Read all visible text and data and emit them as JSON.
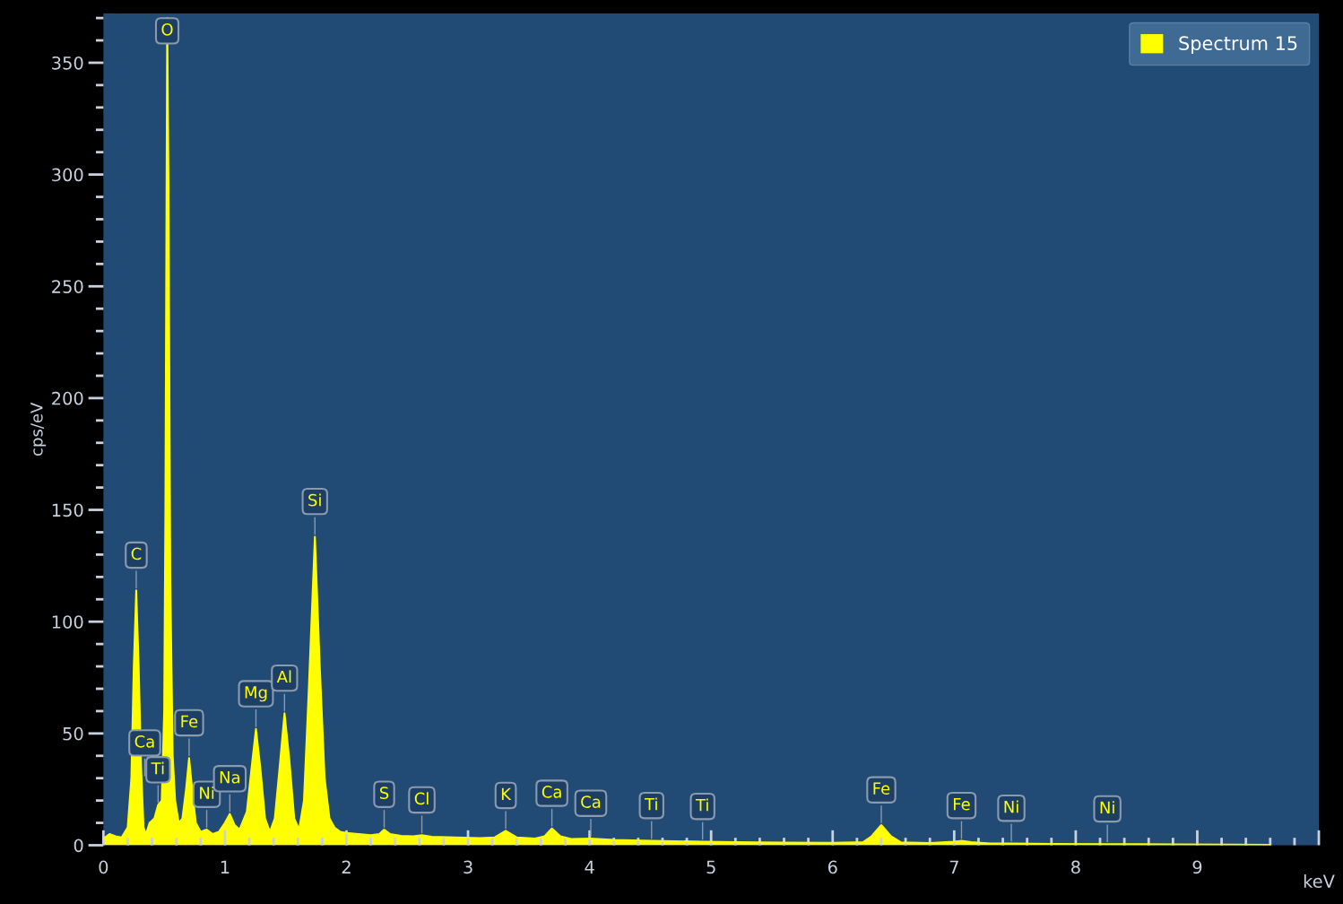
{
  "chart_data": {
    "type": "area",
    "xlabel": "keV",
    "ylabel": "cps/eV",
    "xlim": [
      0,
      10
    ],
    "xticks": [
      0,
      1,
      2,
      3,
      4,
      5,
      6,
      7,
      8,
      9,
      {
        "value": 10,
        "label": null
      }
    ],
    "ylim": [
      0,
      372
    ],
    "yticks": [
      0,
      50,
      100,
      150,
      200,
      250,
      300,
      350
    ],
    "grid": false,
    "legend": "top right",
    "series": [
      {
        "name": "Spectrum 15",
        "color": "#ffff00",
        "x": [
          0.0,
          0.05,
          0.1,
          0.15,
          0.2,
          0.23,
          0.25,
          0.27,
          0.29,
          0.31,
          0.33,
          0.35,
          0.38,
          0.42,
          0.45,
          0.48,
          0.5,
          0.51,
          0.52,
          0.525,
          0.535,
          0.55,
          0.57,
          0.59,
          0.62,
          0.65,
          0.68,
          0.705,
          0.73,
          0.76,
          0.8,
          0.85,
          0.9,
          0.95,
          1.0,
          1.04,
          1.08,
          1.12,
          1.18,
          1.22,
          1.255,
          1.29,
          1.33,
          1.37,
          1.41,
          1.45,
          1.49,
          1.53,
          1.57,
          1.61,
          1.65,
          1.69,
          1.74,
          1.78,
          1.82,
          1.86,
          1.9,
          1.95,
          2.0,
          2.1,
          2.2,
          2.27,
          2.31,
          2.36,
          2.45,
          2.55,
          2.62,
          2.7,
          2.9,
          3.1,
          3.22,
          3.31,
          3.4,
          3.55,
          3.63,
          3.69,
          3.76,
          3.85,
          4.01,
          4.2,
          4.51,
          4.7,
          4.93,
          5.2,
          5.6,
          6.0,
          6.25,
          6.32,
          6.4,
          6.48,
          6.56,
          6.8,
          7.0,
          7.06,
          7.14,
          7.3,
          7.47,
          7.8,
          8.26,
          8.8,
          9.3,
          9.6
        ],
        "values": [
          3,
          5,
          4,
          3.5,
          8,
          30,
          80,
          114,
          80,
          35,
          8,
          5,
          10,
          12,
          18,
          20,
          60,
          150,
          300,
          370,
          300,
          120,
          40,
          20,
          10,
          12,
          25,
          39,
          25,
          10,
          6,
          7,
          5,
          6,
          10,
          14,
          9,
          7,
          15,
          35,
          52,
          35,
          12,
          6,
          12,
          35,
          59,
          38,
          12,
          7,
          20,
          70,
          138,
          80,
          30,
          12,
          8,
          6,
          5.5,
          5,
          4.5,
          5,
          7,
          5,
          4.2,
          4,
          4.5,
          3.8,
          3.5,
          3.2,
          3.5,
          6.5,
          3.5,
          3,
          4,
          7.5,
          4,
          2.8,
          3,
          2.4,
          2,
          1.8,
          1.6,
          1.4,
          1.2,
          1.1,
          1.4,
          4,
          9,
          4,
          1.3,
          1.0,
          1.6,
          2,
          1.4,
          0.8,
          0.8,
          0.6,
          0.5,
          0.4,
          0.3,
          0.2
        ]
      }
    ],
    "annotations": [
      {
        "text": "C",
        "x": 0.27,
        "y": 114
      },
      {
        "text": "Ca",
        "x": 0.34,
        "y": 30
      },
      {
        "text": "Ti",
        "x": 0.45,
        "y": 18
      },
      {
        "text": "O",
        "x": 0.525,
        "y": 370
      },
      {
        "text": "Fe",
        "x": 0.705,
        "y": 39
      },
      {
        "text": "Ni",
        "x": 0.85,
        "y": 7
      },
      {
        "text": "Na",
        "x": 1.04,
        "y": 14
      },
      {
        "text": "Mg",
        "x": 1.255,
        "y": 52
      },
      {
        "text": "Al",
        "x": 1.49,
        "y": 59
      },
      {
        "text": "Si",
        "x": 1.74,
        "y": 138
      },
      {
        "text": "S",
        "x": 2.31,
        "y": 7
      },
      {
        "text": "Cl",
        "x": 2.62,
        "y": 4.5
      },
      {
        "text": "K",
        "x": 3.31,
        "y": 6.5
      },
      {
        "text": "Ca",
        "x": 3.69,
        "y": 7.5
      },
      {
        "text": "Ca",
        "x": 4.01,
        "y": 3
      },
      {
        "text": "Ti",
        "x": 4.51,
        "y": 2
      },
      {
        "text": "Ti",
        "x": 4.93,
        "y": 1.6
      },
      {
        "text": "Fe",
        "x": 6.4,
        "y": 9
      },
      {
        "text": "Fe",
        "x": 7.06,
        "y": 2
      },
      {
        "text": "Ni",
        "x": 7.47,
        "y": 0.8
      },
      {
        "text": "Ni",
        "x": 8.26,
        "y": 0.5
      }
    ]
  }
}
